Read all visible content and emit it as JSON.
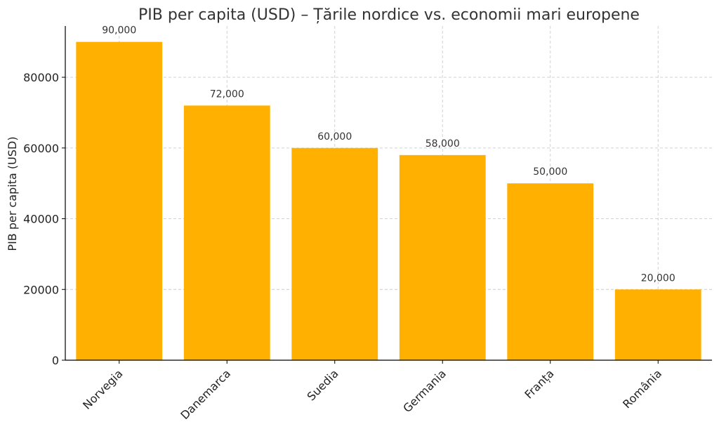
{
  "chart_data": {
    "type": "bar",
    "title": "PIB per capita (USD) – Țările nordice vs. economii mari europene",
    "xlabel": "",
    "ylabel": "PIB per capita (USD)",
    "categories": [
      "Norvegia",
      "Danemarca",
      "Suedia",
      "Germania",
      "Franța",
      "România"
    ],
    "values": [
      90000,
      72000,
      60000,
      58000,
      50000,
      20000
    ],
    "data_labels": [
      "90,000",
      "72,000",
      "60,000",
      "58,000",
      "50,000",
      "20,000"
    ],
    "ylim": [
      0,
      94500
    ],
    "yticks": [
      0,
      20000,
      40000,
      60000,
      80000
    ],
    "ytick_labels": [
      "0",
      "20000",
      "40000",
      "60000",
      "80000"
    ],
    "grid": true,
    "bar_color": "#FFB000"
  }
}
